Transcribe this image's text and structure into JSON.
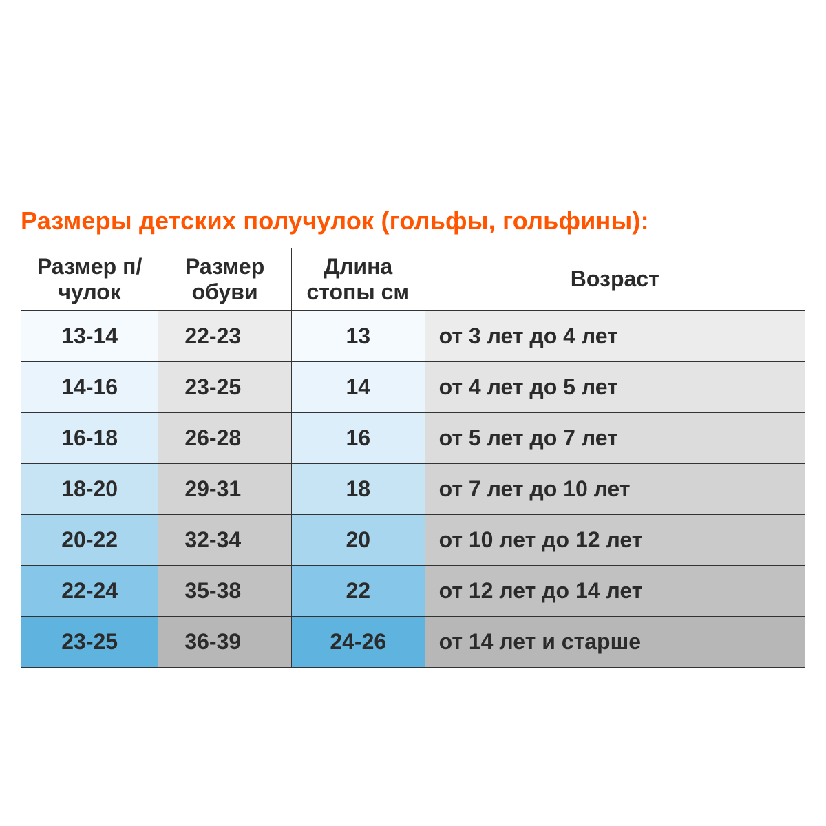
{
  "title": "Размеры детских получулок (гольфы, гольфины):",
  "table": {
    "type": "table",
    "border_color": "#333333",
    "header_bg": "#ffffff",
    "text_color": "#2b2b2b",
    "title_color": "#ff5500",
    "title_fontsize": 36,
    "cell_fontsize": 32,
    "blue_gradient": [
      "#f5faff",
      "#e9f4fc",
      "#dceef9",
      "#c7e4f5",
      "#a9d6ef",
      "#86c6e8",
      "#5fb3df"
    ],
    "grey_gradient": [
      "#ececec",
      "#e4e4e4",
      "#dcdcdc",
      "#d3d3d3",
      "#cacaca",
      "#c1c1c1",
      "#b7b7b7"
    ],
    "columns": [
      {
        "key": "sock_size",
        "label": "Размер п/чулок",
        "align": "center",
        "col_color": "blue",
        "width_pct": 17.5
      },
      {
        "key": "shoe_size",
        "label": "Размер обуви",
        "align": "pad-l",
        "col_color": "grey",
        "width_pct": 17.0
      },
      {
        "key": "foot_len",
        "label": "Длина стопы см",
        "align": "center",
        "col_color": "blue",
        "width_pct": 17.0
      },
      {
        "key": "age",
        "label": "Возраст",
        "align": "left",
        "col_color": "grey",
        "width_pct": 48.5
      }
    ],
    "rows": [
      {
        "sock_size": "13-14",
        "shoe_size": "22-23",
        "foot_len": "13",
        "age": "от 3 лет до 4 лет"
      },
      {
        "sock_size": "14-16",
        "shoe_size": "23-25",
        "foot_len": "14",
        "age": "от 4 лет до 5 лет"
      },
      {
        "sock_size": "16-18",
        "shoe_size": "26-28",
        "foot_len": "16",
        "age": "от 5 лет до 7 лет"
      },
      {
        "sock_size": "18-20",
        "shoe_size": "29-31",
        "foot_len": "18",
        "age": "от 7 лет до 10 лет"
      },
      {
        "sock_size": "20-22",
        "shoe_size": "32-34",
        "foot_len": "20",
        "age": "от 10 лет до 12 лет"
      },
      {
        "sock_size": "22-24",
        "shoe_size": "35-38",
        "foot_len": "22",
        "age": "от 12 лет до 14 лет"
      },
      {
        "sock_size": "23-25",
        "shoe_size": "36-39",
        "foot_len": "24-26",
        "age": "от 14 лет и старше"
      }
    ]
  }
}
